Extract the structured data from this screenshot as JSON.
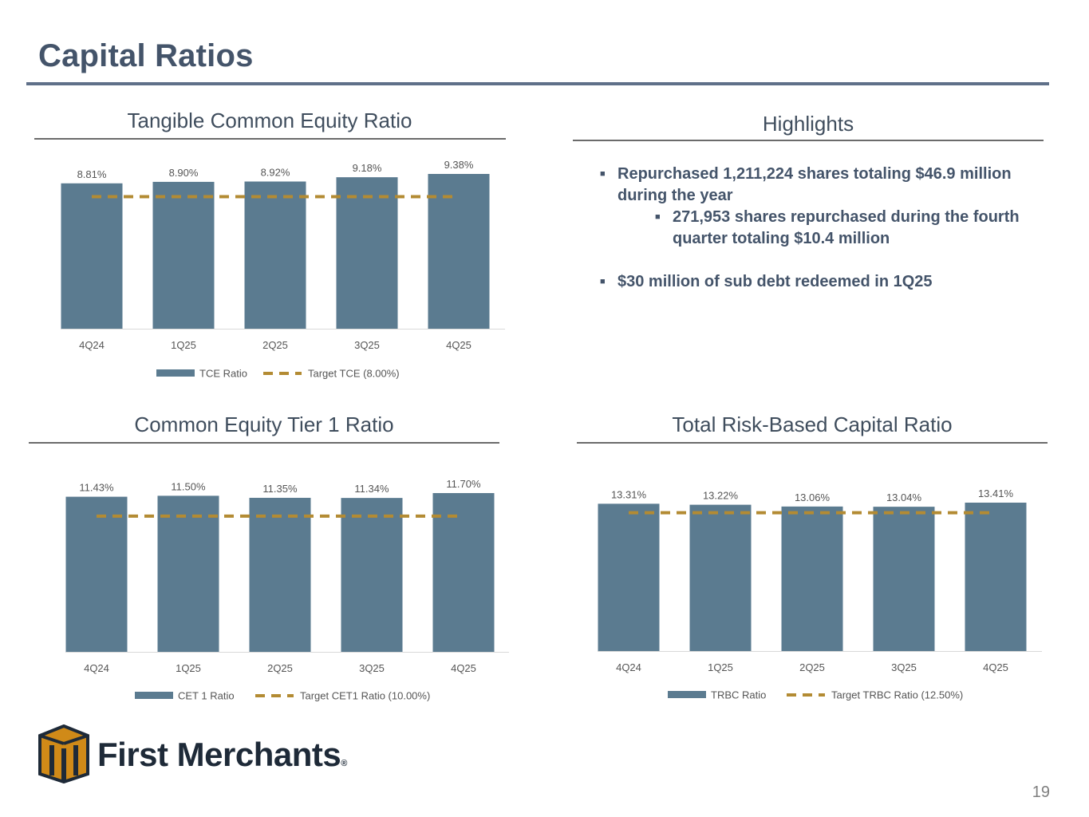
{
  "page": {
    "title": "Capital Ratios",
    "page_number": "19"
  },
  "colors": {
    "bar": "#5b7b90",
    "target": "#b38b33",
    "title": "#44546a"
  },
  "highlights": {
    "title": "Highlights",
    "bullets": [
      {
        "text": "Repurchased 1,211,224 shares totaling $46.9 million during the year"
      },
      {
        "text": "271,953 shares repurchased during the fourth quarter totaling $10.4 million"
      },
      {
        "text": "$30 million of sub debt redeemed in 1Q25"
      }
    ]
  },
  "logo": {
    "name": "First Merchants",
    "reg": "®"
  },
  "chart_data": [
    {
      "type": "bar",
      "title": "Tangible Common Equity Ratio",
      "categories": [
        "4Q24",
        "1Q25",
        "2Q25",
        "3Q25",
        "4Q25"
      ],
      "values": [
        8.81,
        8.9,
        8.92,
        9.18,
        9.38
      ],
      "labels": [
        "8.81%",
        "8.90%",
        "8.92%",
        "9.18%",
        "9.38%"
      ],
      "series_name": "TCE Ratio",
      "target": 8.0,
      "target_name": "Target TCE (8.00%)",
      "ylim": [
        0,
        9.38
      ]
    },
    {
      "type": "bar",
      "title": "Common Equity Tier 1 Ratio",
      "categories": [
        "4Q24",
        "1Q25",
        "2Q25",
        "3Q25",
        "4Q25"
      ],
      "values": [
        11.43,
        11.5,
        11.35,
        11.34,
        11.7
      ],
      "labels": [
        "11.43%",
        "11.50%",
        "11.35%",
        "11.34%",
        "11.70%"
      ],
      "series_name": "CET 1 Ratio",
      "target": 10.0,
      "target_name": "Target CET1 Ratio (10.00%)",
      "ylim": [
        0,
        11.7
      ]
    },
    {
      "type": "bar",
      "title": "Total Risk-Based Capital Ratio",
      "categories": [
        "4Q24",
        "1Q25",
        "2Q25",
        "3Q25",
        "4Q25"
      ],
      "values": [
        13.31,
        13.22,
        13.06,
        13.04,
        13.41
      ],
      "labels": [
        "13.31%",
        "13.22%",
        "13.06%",
        "13.04%",
        "13.41%"
      ],
      "series_name": "TRBC Ratio",
      "target": 12.5,
      "target_name": "Target TRBC Ratio (12.50%)",
      "ylim": [
        0,
        13.41
      ]
    }
  ]
}
